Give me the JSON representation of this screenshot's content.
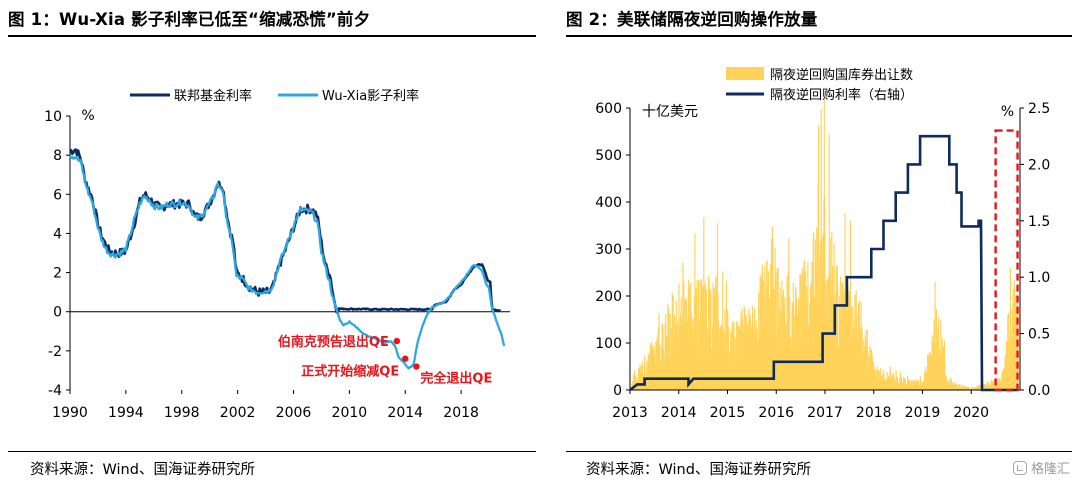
{
  "titles": {
    "left": "图 1：Wu-Xia 影子利率已低至“缩减恐慌”前夕",
    "right": "图 2：美联储隔夜逆回购操作放量"
  },
  "sources": {
    "left": "资料来源：Wind、国海证券研究所",
    "right": "资料来源：Wind、国海证券研究所"
  },
  "watermark": {
    "text": "格隆汇",
    "icon": "brand-logo-icon"
  },
  "chart_data": [
    {
      "type": "line",
      "title": "",
      "ylabel": "%",
      "xlim": [
        1990,
        2021.5
      ],
      "ylim": [
        -4,
        10
      ],
      "x_ticks": [
        1990,
        1994,
        1998,
        2002,
        2006,
        2010,
        2014,
        2018
      ],
      "y_ticks": [
        -4,
        -2,
        0,
        2,
        4,
        6,
        8,
        10
      ],
      "legend_position": "top",
      "colors": {
        "fed_funds": "#0e2a5e",
        "shadow_rate": "#2fa8df",
        "annotation": "#e8141b"
      },
      "series": [
        {
          "name": "联邦基金利率",
          "points": [
            [
              1990,
              8.2
            ],
            [
              1990.4,
              8.3
            ],
            [
              1990.8,
              7.8
            ],
            [
              1991,
              7.0
            ],
            [
              1991.3,
              6.3
            ],
            [
              1991.6,
              5.8
            ],
            [
              1991.9,
              4.8
            ],
            [
              1992.2,
              4.0
            ],
            [
              1992.5,
              3.5
            ],
            [
              1992.8,
              3.1
            ],
            [
              1993.2,
              3.0
            ],
            [
              1993.6,
              3.0
            ],
            [
              1994,
              3.1
            ],
            [
              1994.3,
              3.8
            ],
            [
              1994.6,
              4.5
            ],
            [
              1995,
              5.6
            ],
            [
              1995.3,
              6.0
            ],
            [
              1995.7,
              5.8
            ],
            [
              1996,
              5.5
            ],
            [
              1996.5,
              5.3
            ],
            [
              1997,
              5.5
            ],
            [
              1997.5,
              5.5
            ],
            [
              1998,
              5.5
            ],
            [
              1998.6,
              5.5
            ],
            [
              1998.9,
              4.9
            ],
            [
              1999.3,
              4.8
            ],
            [
              1999.8,
              5.3
            ],
            [
              2000.3,
              6.0
            ],
            [
              2000.5,
              6.5
            ],
            [
              2000.9,
              6.5
            ],
            [
              2001.1,
              5.6
            ],
            [
              2001.4,
              4.3
            ],
            [
              2001.7,
              3.5
            ],
            [
              2001.9,
              2.0
            ],
            [
              2002.3,
              1.75
            ],
            [
              2002.8,
              1.3
            ],
            [
              2003.4,
              1.0
            ],
            [
              2004.3,
              1.0
            ],
            [
              2004.6,
              1.4
            ],
            [
              2005,
              2.4
            ],
            [
              2005.5,
              3.3
            ],
            [
              2006,
              4.3
            ],
            [
              2006.5,
              5.25
            ],
            [
              2007.3,
              5.25
            ],
            [
              2007.7,
              4.9
            ],
            [
              2008,
              3.5
            ],
            [
              2008.3,
              2.3
            ],
            [
              2008.6,
              2.0
            ],
            [
              2008.9,
              0.6
            ],
            [
              2009.1,
              0.15
            ],
            [
              2012,
              0.12
            ],
            [
              2015.9,
              0.12
            ],
            [
              2016.1,
              0.35
            ],
            [
              2016.9,
              0.5
            ],
            [
              2017.3,
              0.9
            ],
            [
              2017.5,
              1.15
            ],
            [
              2017.9,
              1.3
            ],
            [
              2018.2,
              1.6
            ],
            [
              2018.5,
              1.9
            ],
            [
              2018.9,
              2.3
            ],
            [
              2019.2,
              2.4
            ],
            [
              2019.5,
              2.4
            ],
            [
              2019.7,
              2.1
            ],
            [
              2019.9,
              1.6
            ],
            [
              2020.1,
              1.55
            ],
            [
              2020.2,
              0.08
            ],
            [
              2020.9,
              0.08
            ]
          ]
        },
        {
          "name": "Wu-Xia影子利率",
          "points": [
            [
              1990,
              8.0
            ],
            [
              1990.4,
              7.9
            ],
            [
              1990.8,
              7.6
            ],
            [
              1991,
              6.9
            ],
            [
              1991.3,
              6.1
            ],
            [
              1991.6,
              5.6
            ],
            [
              1991.9,
              4.6
            ],
            [
              1992.2,
              3.8
            ],
            [
              1992.5,
              3.3
            ],
            [
              1992.8,
              3.0
            ],
            [
              1993.2,
              2.9
            ],
            [
              1993.6,
              3.0
            ],
            [
              1994,
              3.2
            ],
            [
              1994.3,
              3.9
            ],
            [
              1994.6,
              4.7
            ],
            [
              1995,
              5.5
            ],
            [
              1995.3,
              5.9
            ],
            [
              1995.7,
              5.7
            ],
            [
              1996,
              5.4
            ],
            [
              1996.5,
              5.3
            ],
            [
              1997,
              5.5
            ],
            [
              1997.5,
              5.5
            ],
            [
              1998,
              5.6
            ],
            [
              1998.6,
              5.4
            ],
            [
              1998.9,
              4.8
            ],
            [
              1999.3,
              4.8
            ],
            [
              1999.8,
              5.3
            ],
            [
              2000.3,
              5.9
            ],
            [
              2000.5,
              6.5
            ],
            [
              2000.9,
              6.3
            ],
            [
              2001.1,
              5.3
            ],
            [
              2001.4,
              4.1
            ],
            [
              2001.7,
              3.2
            ],
            [
              2001.9,
              1.8
            ],
            [
              2002.3,
              1.7
            ],
            [
              2002.8,
              1.2
            ],
            [
              2003.4,
              1.0
            ],
            [
              2004.3,
              1.1
            ],
            [
              2004.6,
              1.5
            ],
            [
              2005,
              2.5
            ],
            [
              2005.5,
              3.4
            ],
            [
              2006,
              4.4
            ],
            [
              2006.5,
              5.2
            ],
            [
              2007.3,
              5.1
            ],
            [
              2007.7,
              4.6
            ],
            [
              2008,
              3.1
            ],
            [
              2008.3,
              2.2
            ],
            [
              2008.6,
              1.5
            ],
            [
              2008.9,
              0.4
            ],
            [
              2009.1,
              0.1
            ],
            [
              2009.3,
              -0.4
            ],
            [
              2009.6,
              -0.7
            ],
            [
              2010,
              -0.5
            ],
            [
              2010.5,
              -0.8
            ],
            [
              2011,
              -1.1
            ],
            [
              2011.5,
              -1.3
            ],
            [
              2012,
              -1.4
            ],
            [
              2012.5,
              -1.6
            ],
            [
              2013,
              -1.5
            ],
            [
              2013.3,
              -1.8
            ],
            [
              2013.5,
              -2.3
            ],
            [
              2013.9,
              -2.6
            ],
            [
              2014.2,
              -2.9
            ],
            [
              2014.6,
              -2.7
            ],
            [
              2014.9,
              -1.5
            ],
            [
              2015.2,
              -0.8
            ],
            [
              2015.6,
              -0.1
            ],
            [
              2015.9,
              0.2
            ],
            [
              2016.3,
              0.35
            ],
            [
              2016.8,
              0.5
            ],
            [
              2017.3,
              0.9
            ],
            [
              2017.6,
              1.2
            ],
            [
              2018,
              1.5
            ],
            [
              2018.5,
              2.0
            ],
            [
              2018.9,
              2.4
            ],
            [
              2019.2,
              2.3
            ],
            [
              2019.5,
              2.1
            ],
            [
              2019.8,
              1.4
            ],
            [
              2020,
              1.2
            ],
            [
              2020.2,
              0.2
            ],
            [
              2020.6,
              -0.6
            ],
            [
              2020.9,
              -1.2
            ],
            [
              2021.1,
              -1.8
            ]
          ]
        }
      ],
      "annotations": [
        {
          "text": "伯南克预告退出QE",
          "x": 2013.4,
          "y": -1.5
        },
        {
          "text": "正式开始缩减QE",
          "x": 2014.0,
          "y": -2.4
        },
        {
          "text": "完全退出QE",
          "x": 2014.8,
          "y": -2.8
        }
      ]
    },
    {
      "type": "bar+line",
      "title": "",
      "ylabel_left": "十亿美元",
      "ylabel_right": "%",
      "xlim": [
        2013,
        2021
      ],
      "x_ticks": [
        2013,
        2014,
        2015,
        2016,
        2017,
        2018,
        2019,
        2020
      ],
      "ylim_left": [
        0,
        600
      ],
      "y_ticks_left": [
        0,
        100,
        200,
        300,
        400,
        500,
        600
      ],
      "ylim_right": [
        0,
        2.5
      ],
      "y_ticks_right": [
        0.0,
        0.5,
        1.0,
        1.5,
        2.0,
        2.5
      ],
      "legend_position": "top-right",
      "colors": {
        "bars": "#ffd35a",
        "rate": "#0e2a5e",
        "highlight": "#e8141b"
      },
      "highlight_box": {
        "x": [
          2020.5,
          2020.95
        ],
        "y_right": [
          0,
          2.3
        ],
        "style": "dashed"
      },
      "bars": {
        "name": "隔夜逆回购国库券出让数",
        "envelope": [
          [
            2013,
            10
          ],
          [
            2013.2,
            60
          ],
          [
            2013.5,
            120
          ],
          [
            2013.8,
            200
          ],
          [
            2014,
            230
          ],
          [
            2014.3,
            250
          ],
          [
            2014.6,
            250
          ],
          [
            2014.8,
            250
          ],
          [
            2015,
            170
          ],
          [
            2015.3,
            180
          ],
          [
            2015.6,
            210
          ],
          [
            2015.9,
            400
          ],
          [
            2016.0,
            310
          ],
          [
            2016.3,
            250
          ],
          [
            2016.6,
            280
          ],
          [
            2016.9,
            400
          ],
          [
            2017.0,
            420
          ],
          [
            2017.2,
            300
          ],
          [
            2017.5,
            250
          ],
          [
            2017.8,
            170
          ],
          [
            2018.0,
            60
          ],
          [
            2018.5,
            30
          ],
          [
            2019,
            20
          ],
          [
            2019.3,
            210
          ],
          [
            2019.5,
            20
          ],
          [
            2020,
            5
          ],
          [
            2020.6,
            30
          ],
          [
            2020.9,
            260
          ]
        ]
      },
      "line": {
        "name": "隔夜逆回购利率（右轴）",
        "points": [
          [
            2013,
            0.0
          ],
          [
            2013.15,
            0.05
          ],
          [
            2013.3,
            0.05
          ],
          [
            2013.3,
            0.1
          ],
          [
            2014.2,
            0.1
          ],
          [
            2014.2,
            0.05
          ],
          [
            2014.3,
            0.1
          ],
          [
            2015.95,
            0.1
          ],
          [
            2015.95,
            0.25
          ],
          [
            2016.95,
            0.25
          ],
          [
            2016.95,
            0.5
          ],
          [
            2017.2,
            0.5
          ],
          [
            2017.2,
            0.75
          ],
          [
            2017.45,
            0.75
          ],
          [
            2017.45,
            1.0
          ],
          [
            2017.95,
            1.0
          ],
          [
            2017.95,
            1.25
          ],
          [
            2018.2,
            1.25
          ],
          [
            2018.2,
            1.5
          ],
          [
            2018.45,
            1.5
          ],
          [
            2018.45,
            1.75
          ],
          [
            2018.7,
            1.75
          ],
          [
            2018.7,
            2.0
          ],
          [
            2018.95,
            2.0
          ],
          [
            2018.95,
            2.25
          ],
          [
            2019.55,
            2.25
          ],
          [
            2019.55,
            2.0
          ],
          [
            2019.7,
            2.0
          ],
          [
            2019.7,
            1.75
          ],
          [
            2019.8,
            1.75
          ],
          [
            2019.8,
            1.45
          ],
          [
            2020.15,
            1.45
          ],
          [
            2020.15,
            1.5
          ],
          [
            2020.2,
            1.5
          ],
          [
            2020.22,
            0.0
          ],
          [
            2020.95,
            0.0
          ]
        ]
      }
    }
  ]
}
